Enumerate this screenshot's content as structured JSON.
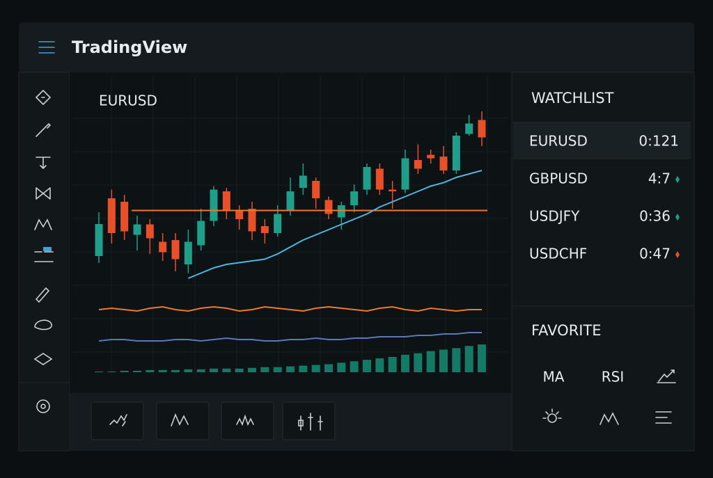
{
  "header": {
    "title": "TradingView"
  },
  "chart": {
    "symbol": "EURUSD",
    "ylim": [
      0,
      100
    ],
    "candles": [
      {
        "o": 12.8,
        "h": 38,
        "l": 8.8,
        "c": 31.2
      },
      {
        "o": 46,
        "h": 51,
        "l": 20,
        "c": 26
      },
      {
        "o": 44,
        "h": 48,
        "l": 22,
        "c": 27
      },
      {
        "o": 25,
        "h": 36,
        "l": 16,
        "c": 31
      },
      {
        "o": 31,
        "h": 34,
        "l": 14,
        "c": 23
      },
      {
        "o": 21,
        "h": 26,
        "l": 10,
        "c": 15
      },
      {
        "o": 22,
        "h": 26,
        "l": 4,
        "c": 11
      },
      {
        "o": 8,
        "h": 28,
        "l": 3,
        "c": 21
      },
      {
        "o": 19,
        "h": 40,
        "l": 16,
        "c": 33
      },
      {
        "o": 33,
        "h": 53,
        "l": 30,
        "c": 51
      },
      {
        "o": 50,
        "h": 52,
        "l": 34,
        "c": 39
      },
      {
        "o": 39,
        "h": 42,
        "l": 28,
        "c": 34
      },
      {
        "o": 40,
        "h": 44,
        "l": 22,
        "c": 27
      },
      {
        "o": 30,
        "h": 34,
        "l": 20,
        "c": 26
      },
      {
        "o": 26,
        "h": 42,
        "l": 24,
        "c": 37
      },
      {
        "o": 39,
        "h": 58,
        "l": 36,
        "c": 50
      },
      {
        "o": 52,
        "h": 66,
        "l": 48,
        "c": 59
      },
      {
        "o": 56,
        "h": 58,
        "l": 40,
        "c": 46
      },
      {
        "o": 45,
        "h": 47,
        "l": 34,
        "c": 37
      },
      {
        "o": 35,
        "h": 44,
        "l": 28,
        "c": 42
      },
      {
        "o": 42,
        "h": 54,
        "l": 38,
        "c": 50
      },
      {
        "o": 51,
        "h": 66,
        "l": 48,
        "c": 64
      },
      {
        "o": 63,
        "h": 66,
        "l": 48,
        "c": 51
      },
      {
        "o": 51,
        "h": 56,
        "l": 40,
        "c": 50
      },
      {
        "o": 51,
        "h": 74,
        "l": 49,
        "c": 69
      },
      {
        "o": 68,
        "h": 77,
        "l": 60,
        "c": 63
      },
      {
        "o": 71,
        "h": 74,
        "l": 66,
        "c": 69
      },
      {
        "o": 70,
        "h": 76,
        "l": 60,
        "c": 62
      },
      {
        "o": 62,
        "h": 84,
        "l": 60,
        "c": 82
      },
      {
        "o": 83,
        "h": 94,
        "l": 82,
        "c": 89
      },
      {
        "o": 91,
        "h": 96,
        "l": 76,
        "c": 81
      }
    ],
    "ma": [
      null,
      null,
      null,
      null,
      null,
      null,
      null,
      0,
      3,
      6,
      8,
      9,
      10,
      11,
      14,
      18,
      22,
      25,
      28,
      31,
      34,
      37,
      41,
      44,
      47,
      50,
      53,
      55,
      58,
      60,
      62
    ],
    "level": {
      "value": 39,
      "start": 3
    },
    "osc1": {
      "ylim": [
        0,
        10
      ],
      "values": [
        5,
        6,
        5,
        4,
        6,
        7,
        5,
        4,
        6,
        7,
        6,
        4,
        5,
        7,
        6,
        5,
        4,
        6,
        7,
        6,
        5,
        4,
        6,
        7,
        5,
        4,
        6,
        5,
        4,
        5,
        5
      ]
    },
    "osc2": {
      "ylim": [
        0,
        10
      ],
      "values": [
        3,
        4,
        4,
        3,
        3,
        3,
        4,
        4,
        3,
        4,
        5,
        4,
        4,
        3,
        3,
        4,
        4,
        5,
        4,
        4,
        5,
        5,
        6,
        6,
        6,
        7,
        7,
        8,
        8,
        9,
        9
      ]
    },
    "volume": {
      "ylim": [
        0,
        40
      ],
      "values": [
        1,
        1,
        2,
        2,
        3,
        3,
        3,
        4,
        4,
        5,
        5,
        5,
        6,
        7,
        7,
        8,
        9,
        10,
        11,
        13,
        15,
        17,
        19,
        21,
        24,
        26,
        29,
        31,
        33,
        36,
        38
      ]
    }
  },
  "watchlist": {
    "title": "WATCHLIST",
    "items": [
      {
        "symbol": "EURUSD",
        "value": "0:121",
        "trend": "none"
      },
      {
        "symbol": "GBPUSD",
        "value": "4:7",
        "trend": "up"
      },
      {
        "symbol": "USDJFY",
        "value": "0:36",
        "trend": "up"
      },
      {
        "symbol": "USDCHF",
        "value": "0:47",
        "trend": "down"
      }
    ]
  },
  "favorite": {
    "title": "FAVORITE",
    "items": [
      "MA",
      "RSI"
    ]
  }
}
